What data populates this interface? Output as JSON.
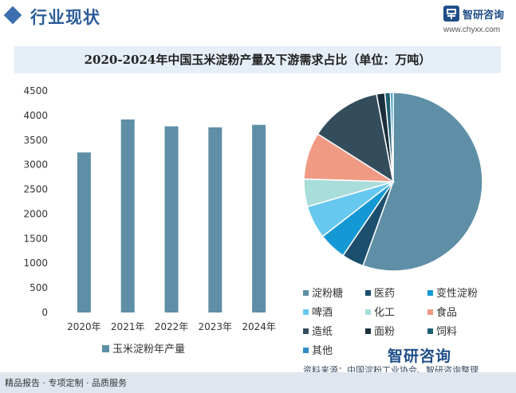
{
  "header": {
    "title": "行业现状",
    "brand_name": "智研咨询",
    "brand_url": "www.chyxx.com"
  },
  "footer": {
    "left_text": "精品报告 · 专项定制 · 品质服务",
    "source": "资料来源：中国淀粉工业协会、智研咨询整理",
    "logo_text": "智研咨询"
  },
  "colors": {
    "bar": "#5e8fa6",
    "brand": "#1f4e86",
    "title_band": "#e6eef7"
  },
  "chart_data": [
    {
      "type": "bar",
      "title": "2020-2024年中国玉米淀粉产量及下游需求占比（单位：万吨）",
      "categories": [
        "2020年",
        "2021年",
        "2022年",
        "2023年",
        "2024年"
      ],
      "series": [
        {
          "name": "玉米淀粉年产量",
          "values": [
            3250,
            3920,
            3780,
            3760,
            3810
          ]
        }
      ],
      "ylim": [
        0,
        4500
      ],
      "yticks": [
        0,
        500,
        1000,
        1500,
        2000,
        2500,
        3000,
        3500,
        4000,
        4500
      ],
      "grid": false,
      "legend_position": "bottom"
    },
    {
      "type": "pie",
      "labels": [
        "淀粉糖",
        "医药",
        "变性淀粉",
        "啤酒",
        "化工",
        "食品",
        "造纸",
        "面粉",
        "饲料",
        "其他"
      ],
      "values": [
        55.5,
        4,
        5,
        6,
        5,
        8.5,
        13,
        1.5,
        1,
        0.5
      ],
      "colors": [
        "#5e8fa6",
        "#1c4f6d",
        "#1499d4",
        "#67c8ef",
        "#a9ddd9",
        "#f09a84",
        "#334d5c",
        "#1a2e3b",
        "#1e5e73",
        "#2f8fc4"
      ],
      "legend_position": "bottom"
    }
  ]
}
